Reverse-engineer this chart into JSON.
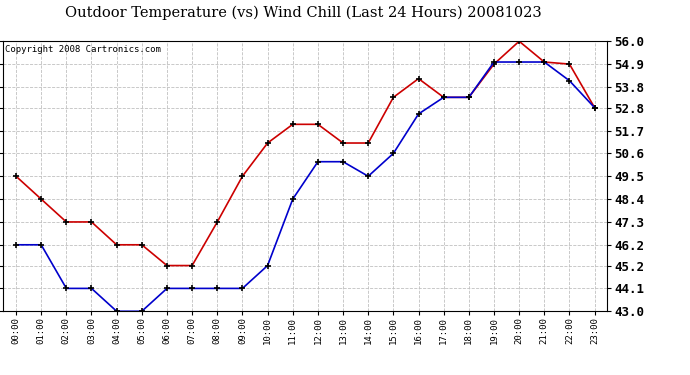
{
  "title": "Outdoor Temperature (vs) Wind Chill (Last 24 Hours) 20081023",
  "copyright": "Copyright 2008 Cartronics.com",
  "x_labels": [
    "00:00",
    "01:00",
    "02:00",
    "03:00",
    "04:00",
    "05:00",
    "06:00",
    "07:00",
    "08:00",
    "09:00",
    "10:00",
    "11:00",
    "12:00",
    "13:00",
    "14:00",
    "15:00",
    "16:00",
    "17:00",
    "18:00",
    "19:00",
    "20:00",
    "21:00",
    "22:00",
    "23:00"
  ],
  "temp_red": [
    49.5,
    48.4,
    47.3,
    47.3,
    46.2,
    46.2,
    45.2,
    45.2,
    47.3,
    49.5,
    51.1,
    52.0,
    52.0,
    51.1,
    51.1,
    53.3,
    54.2,
    53.3,
    53.3,
    54.9,
    56.0,
    55.0,
    54.9,
    52.8
  ],
  "wind_blue": [
    46.2,
    46.2,
    44.1,
    44.1,
    43.0,
    43.0,
    44.1,
    44.1,
    44.1,
    44.1,
    45.2,
    48.4,
    50.2,
    50.2,
    49.5,
    50.6,
    52.5,
    53.3,
    53.3,
    55.0,
    55.0,
    55.0,
    54.1,
    52.8
  ],
  "ylim": [
    43.0,
    56.0
  ],
  "yticks": [
    43.0,
    44.1,
    45.2,
    46.2,
    47.3,
    48.4,
    49.5,
    50.6,
    51.7,
    52.8,
    53.8,
    54.9,
    56.0
  ],
  "red_color": "#cc0000",
  "blue_color": "#0000cc",
  "bg_color": "#ffffff",
  "grid_color": "#c0c0c0",
  "title_fontsize": 10.5,
  "copyright_fontsize": 6.5,
  "ytick_fontsize": 9,
  "xtick_fontsize": 6.5
}
